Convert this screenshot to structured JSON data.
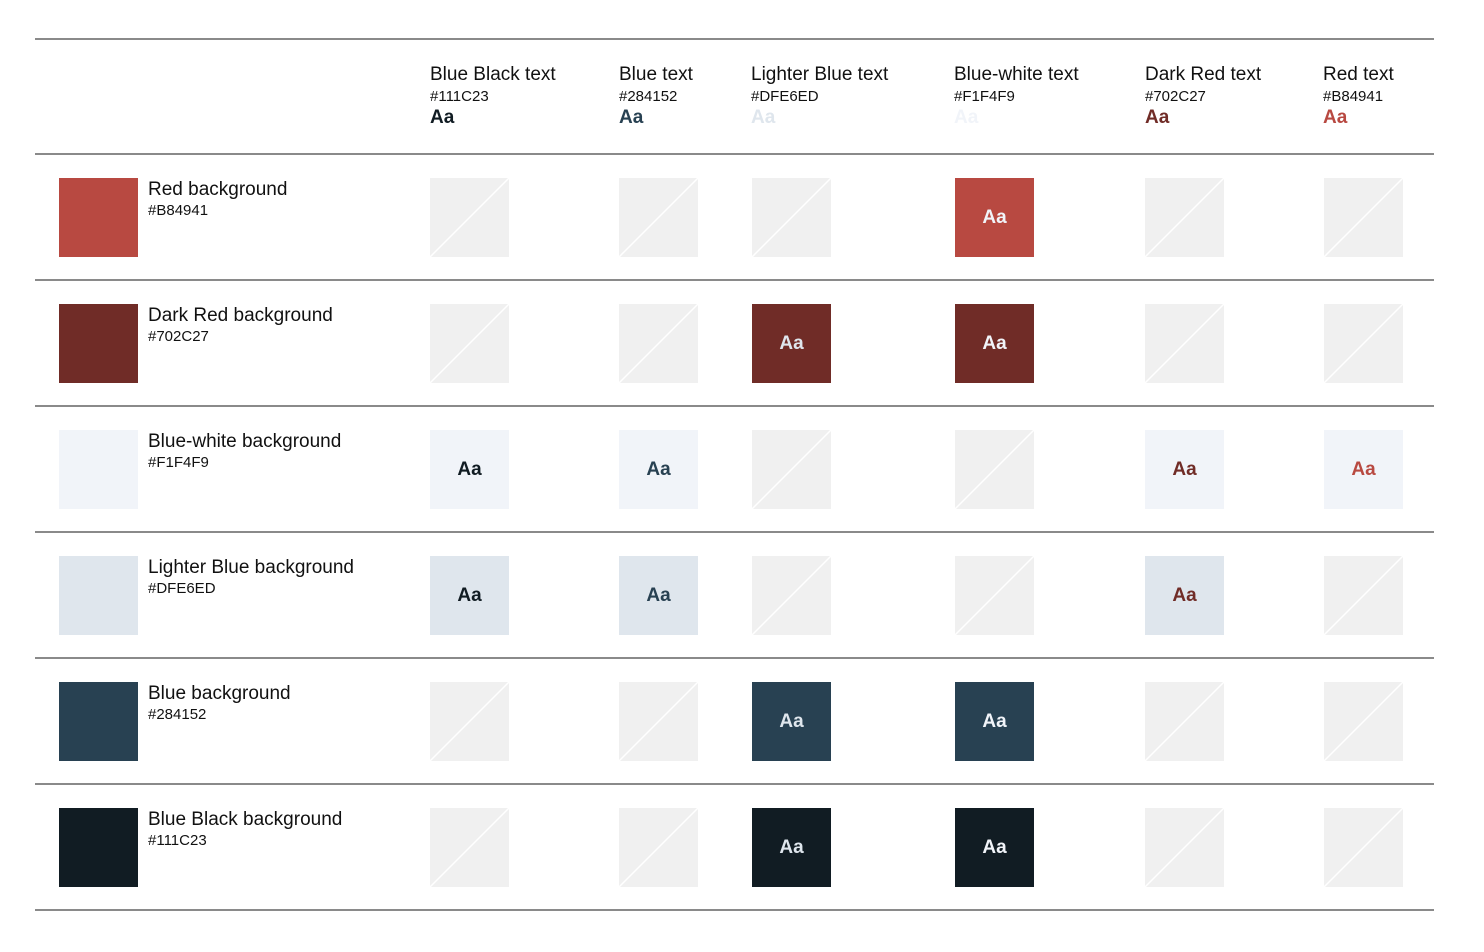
{
  "columns": [
    {
      "name": "Blue Black text",
      "hex": "#111C23",
      "sample": "Aa",
      "color": "#111C23"
    },
    {
      "name": "Blue text",
      "hex": "#284152",
      "sample": "Aa",
      "color": "#284152"
    },
    {
      "name": "Lighter Blue text",
      "hex": "#DFE6ED",
      "sample": "Aa",
      "color": "#DFE6ED"
    },
    {
      "name": "Blue-white text",
      "hex": "#F1F4F9",
      "sample": "Aa",
      "color": "#F1F4F9"
    },
    {
      "name": "Dark Red text",
      "hex": "#702C27",
      "sample": "Aa",
      "color": "#702C27"
    },
    {
      "name": "Red text",
      "hex": "#B84941",
      "sample": "Aa",
      "color": "#B84941"
    }
  ],
  "rows": [
    {
      "name": "Red background",
      "hex": "#B84941",
      "color": "#B84941",
      "cells": [
        {
          "pass": false
        },
        {
          "pass": false
        },
        {
          "pass": false
        },
        {
          "pass": true,
          "sample": "Aa"
        },
        {
          "pass": false
        },
        {
          "pass": false
        }
      ]
    },
    {
      "name": "Dark Red background",
      "hex": "#702C27",
      "color": "#702C27",
      "cells": [
        {
          "pass": false
        },
        {
          "pass": false
        },
        {
          "pass": true,
          "sample": "Aa"
        },
        {
          "pass": true,
          "sample": "Aa"
        },
        {
          "pass": false
        },
        {
          "pass": false
        }
      ]
    },
    {
      "name": "Blue-white background",
      "hex": "#F1F4F9",
      "color": "#F1F4F9",
      "cells": [
        {
          "pass": true,
          "sample": "Aa"
        },
        {
          "pass": true,
          "sample": "Aa"
        },
        {
          "pass": false
        },
        {
          "pass": false
        },
        {
          "pass": true,
          "sample": "Aa"
        },
        {
          "pass": true,
          "sample": "Aa"
        }
      ]
    },
    {
      "name": "Lighter Blue background",
      "hex": "#DFE6ED",
      "color": "#DFE6ED",
      "cells": [
        {
          "pass": true,
          "sample": "Aa"
        },
        {
          "pass": true,
          "sample": "Aa"
        },
        {
          "pass": false
        },
        {
          "pass": false
        },
        {
          "pass": true,
          "sample": "Aa"
        },
        {
          "pass": false
        }
      ]
    },
    {
      "name": "Blue background",
      "hex": "#284152",
      "color": "#284152",
      "cells": [
        {
          "pass": false
        },
        {
          "pass": false
        },
        {
          "pass": true,
          "sample": "Aa"
        },
        {
          "pass": true,
          "sample": "Aa"
        },
        {
          "pass": false
        },
        {
          "pass": false
        }
      ]
    },
    {
      "name": "Blue Black background",
      "hex": "#111C23",
      "color": "#111C23",
      "cells": [
        {
          "pass": false
        },
        {
          "pass": false
        },
        {
          "pass": true,
          "sample": "Aa"
        },
        {
          "pass": true,
          "sample": "Aa"
        },
        {
          "pass": false
        },
        {
          "pass": false
        }
      ]
    }
  ],
  "unavailable_cell_color": "#F0F0F0"
}
